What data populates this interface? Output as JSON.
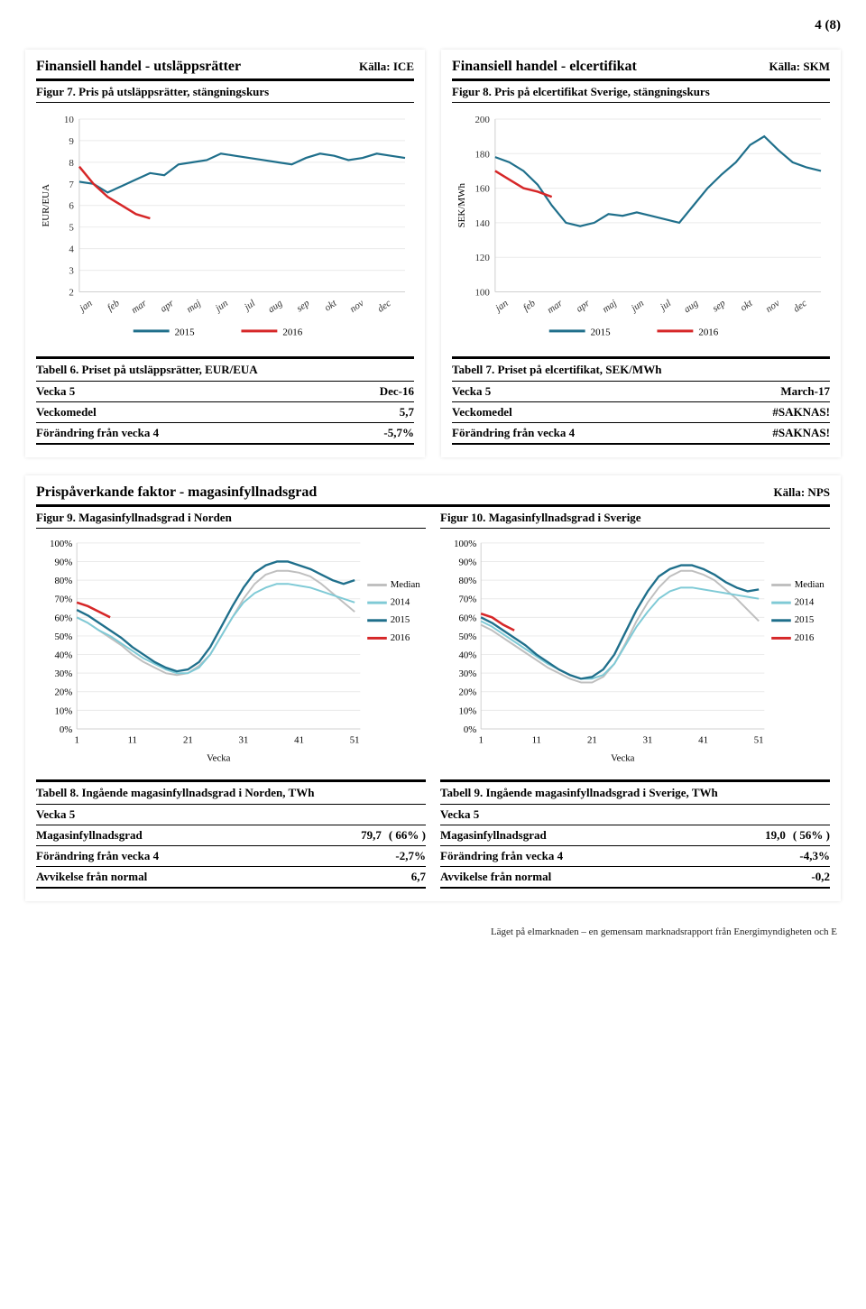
{
  "page": {
    "num": "4 (8)"
  },
  "colors": {
    "c2015": "#1f6f8b",
    "c2016": "#d62728",
    "c2014": "#7fcad6",
    "median": "#bfbfbf",
    "axis": "#d0d0d0",
    "grid": "#eaeaea",
    "black": "#000000"
  },
  "months": [
    "jan",
    "feb",
    "mar",
    "apr",
    "maj",
    "jun",
    "jul",
    "aug",
    "sep",
    "okt",
    "nov",
    "dec"
  ],
  "left1": {
    "title": "Finansiell handel - utsläppsrätter",
    "src": "Källa: ICE",
    "fig_title": "Figur 7. Pris på utsläppsrätter, stängningskurs",
    "ylabel": "EUR/EUA",
    "ylim": [
      2,
      10
    ],
    "ystep": 1,
    "series2015": [
      7.1,
      7.0,
      6.6,
      6.9,
      7.2,
      7.5,
      7.4,
      7.9,
      8.0,
      8.1,
      8.4,
      8.3,
      8.2,
      8.1,
      8.0,
      7.9,
      8.2,
      8.4,
      8.3,
      8.1,
      8.2,
      8.4,
      8.3,
      8.2
    ],
    "series2016": [
      7.8,
      7.0,
      6.4,
      6.0,
      5.6,
      5.4
    ],
    "legend": [
      "2015",
      "2016"
    ],
    "tbl_title": "Tabell 6. Priset på utsläppsrätter, EUR/EUA",
    "rows": [
      {
        "l": "Vecka 5",
        "r": "Dec-16"
      },
      {
        "l": "Veckomedel",
        "r": "5,7"
      },
      {
        "l": "Förändring från vecka 4",
        "r": "-5,7%"
      }
    ]
  },
  "right1": {
    "title": "Finansiell handel - elcertifikat",
    "src": "Källa: SKM",
    "fig_title": "Figur 8. Pris på elcertifikat Sverige, stängningskurs",
    "ylabel": "SEK/MWh",
    "ylim": [
      100,
      200
    ],
    "ystep": 20,
    "series2015": [
      178,
      175,
      170,
      162,
      150,
      140,
      138,
      140,
      145,
      144,
      146,
      144,
      142,
      140,
      150,
      160,
      168,
      175,
      185,
      190,
      182,
      175,
      172,
      170
    ],
    "series2016": [
      170,
      165,
      160,
      158,
      155
    ],
    "legend": [
      "2015",
      "2016"
    ],
    "tbl_title": "Tabell 7. Priset på elcertifikat, SEK/MWh",
    "rows": [
      {
        "l": "Vecka 5",
        "r": "March-17"
      },
      {
        "l": "Veckomedel",
        "r": "#SAKNAS!"
      },
      {
        "l": "Förändring från vecka 4",
        "r": "#SAKNAS!"
      }
    ]
  },
  "wide": {
    "title": "Prispåverkande faktor - magasinfyllnadsgrad",
    "src": "Källa: NPS",
    "left": {
      "fig_title": "Figur 9. Magasinfyllnadsgrad i Norden",
      "tbl_title": "Tabell 8. Ingående magasinfyllnadsgrad i Norden, TWh",
      "rows": [
        {
          "l": "Vecka 5",
          "r": ""
        },
        {
          "l": "Magasinfyllnadsgrad",
          "r": "79,7",
          "rx": "(   66%  )"
        },
        {
          "l": "Förändring från vecka 4",
          "r": "-2,7%"
        },
        {
          "l": "Avvikelse från normal",
          "r": "6,7"
        }
      ]
    },
    "right": {
      "fig_title": "Figur 10. Magasinfyllnadsgrad i Sverige",
      "tbl_title": "Tabell 9. Ingående magasinfyllnadsgrad i Sverige, TWh",
      "rows": [
        {
          "l": "Vecka 5",
          "r": ""
        },
        {
          "l": "Magasinfyllnadsgrad",
          "r": "19,0",
          "rx": "(   56%  )"
        },
        {
          "l": "Förändring från vecka 4",
          "r": "-4,3%"
        },
        {
          "l": "Avvikelse från normal",
          "r": "-0,2"
        }
      ]
    },
    "chart": {
      "ylim": [
        0,
        100
      ],
      "ystep": 10,
      "xticks": [
        1,
        11,
        21,
        31,
        41,
        51
      ],
      "xlabel": "Vecka",
      "legend": [
        "Median",
        "2014",
        "2015",
        "2016"
      ],
      "median": [
        60,
        57,
        53,
        49,
        45,
        40,
        36,
        33,
        30,
        29,
        30,
        34,
        40,
        50,
        60,
        70,
        78,
        83,
        85,
        85,
        84,
        82,
        78,
        73,
        68,
        63
      ],
      "s2014": [
        60,
        57,
        53,
        50,
        46,
        42,
        38,
        35,
        32,
        30,
        30,
        33,
        40,
        50,
        60,
        68,
        73,
        76,
        78,
        78,
        77,
        76,
        74,
        72,
        70,
        68
      ],
      "s2015": [
        64,
        61,
        57,
        53,
        49,
        44,
        40,
        36,
        33,
        31,
        32,
        36,
        44,
        55,
        66,
        76,
        84,
        88,
        90,
        90,
        88,
        86,
        83,
        80,
        78,
        80
      ],
      "s2016": [
        68,
        66,
        63,
        60
      ]
    },
    "chart_right": {
      "median": [
        56,
        53,
        49,
        45,
        41,
        37,
        33,
        30,
        27,
        25,
        25,
        28,
        35,
        46,
        58,
        68,
        76,
        82,
        85,
        85,
        83,
        80,
        75,
        70,
        64,
        58
      ],
      "s2014": [
        58,
        55,
        51,
        47,
        43,
        39,
        35,
        32,
        29,
        27,
        27,
        29,
        35,
        45,
        55,
        63,
        70,
        74,
        76,
        76,
        75,
        74,
        73,
        72,
        71,
        70
      ],
      "s2015": [
        60,
        57,
        53,
        49,
        45,
        40,
        36,
        32,
        29,
        27,
        28,
        32,
        40,
        52,
        64,
        74,
        82,
        86,
        88,
        88,
        86,
        83,
        79,
        76,
        74,
        75
      ],
      "s2016": [
        62,
        60,
        56,
        53
      ]
    }
  },
  "footer": "Läget på elmarknaden – en gemensam marknadsrapport från Energimyndigheten och E"
}
